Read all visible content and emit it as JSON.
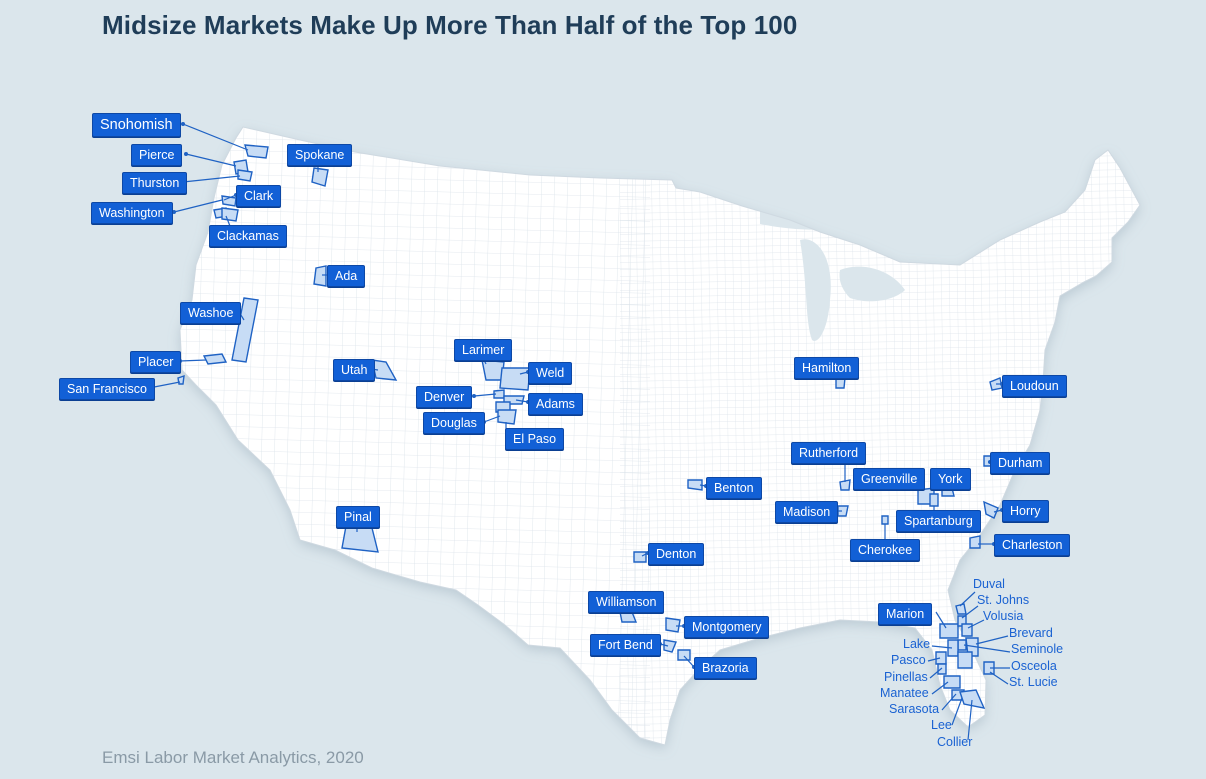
{
  "title": "Midsize Markets Make Up More Than Half of the Top 100",
  "source": "Emsi Labor Market Analytics, 2020",
  "colors": {
    "label_bg": "#1260d6",
    "county_fill": "#c7dcf5",
    "leader": "#1f62c4",
    "text_label": "#1a62d2"
  },
  "counties": {
    "snohomish": "Snohomish",
    "pierce": "Pierce",
    "thurston": "Thurston",
    "washington": "Washington",
    "clark": "Clark",
    "clackamas": "Clackamas",
    "spokane": "Spokane",
    "ada": "Ada",
    "washoe": "Washoe",
    "placer": "Placer",
    "san_francisco": "San Francisco",
    "utah": "Utah",
    "larimer": "Larimer",
    "weld": "Weld",
    "denver": "Denver",
    "adams": "Adams",
    "douglas": "Douglas",
    "el_paso": "El Paso",
    "pinal": "Pinal",
    "hamilton": "Hamilton",
    "loudoun": "Loudoun",
    "rutherford": "Rutherford",
    "durham": "Durham",
    "greenville": "Greenville",
    "york": "York",
    "benton": "Benton",
    "madison": "Madison",
    "spartanburg": "Spartanburg",
    "horry": "Horry",
    "cherokee": "Cherokee",
    "charleston": "Charleston",
    "denton": "Denton",
    "williamson": "Williamson",
    "montgomery": "Montgomery",
    "fort_bend": "Fort Bend",
    "brazoria": "Brazoria",
    "marion": "Marion",
    "duval": "Duval",
    "st_johns": "St. Johns",
    "volusia": "Volusia",
    "brevard": "Brevard",
    "seminole": "Seminole",
    "osceola": "Osceola",
    "st_lucie": "St. Lucie",
    "lake": "Lake",
    "pasco": "Pasco",
    "pinellas": "Pinellas",
    "manatee": "Manatee",
    "sarasota": "Sarasota",
    "lee": "Lee",
    "collier": "Collier"
  }
}
